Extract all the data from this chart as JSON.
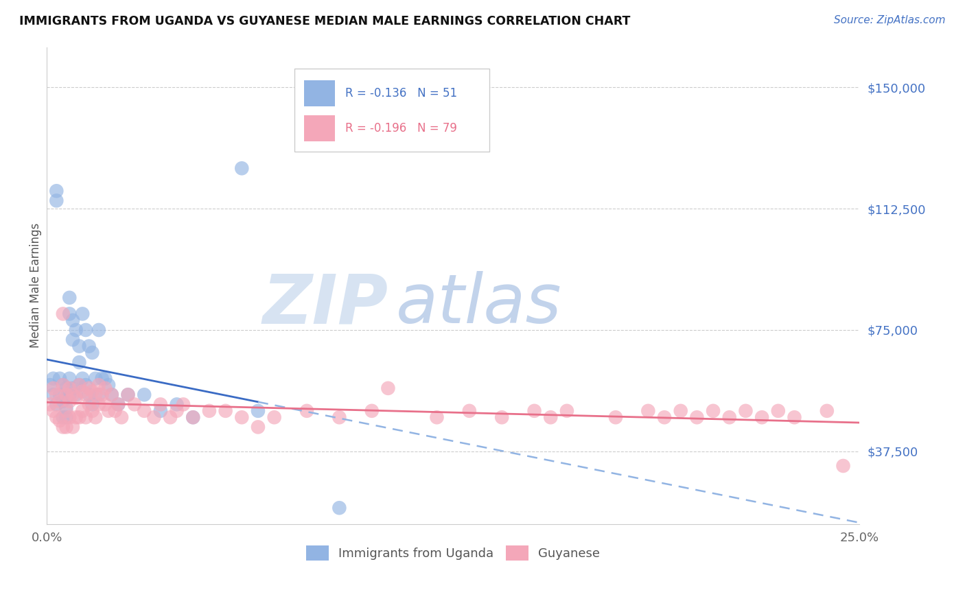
{
  "title": "IMMIGRANTS FROM UGANDA VS GUYANESE MEDIAN MALE EARNINGS CORRELATION CHART",
  "source": "Source: ZipAtlas.com",
  "ylabel": "Median Male Earnings",
  "xlim": [
    0.0,
    0.25
  ],
  "ylim": [
    15000,
    162500
  ],
  "blue_color": "#92b4e3",
  "pink_color": "#f4a7b9",
  "blue_line_color": "#3a6bc4",
  "pink_line_color": "#e8708a",
  "blue_dashed_color": "#92b4e3",
  "watermark_zip": "ZIP",
  "watermark_atlas": "atlas",
  "uganda_x": [
    0.001,
    0.002,
    0.002,
    0.003,
    0.003,
    0.003,
    0.004,
    0.004,
    0.005,
    0.005,
    0.005,
    0.006,
    0.006,
    0.006,
    0.006,
    0.007,
    0.007,
    0.007,
    0.007,
    0.008,
    0.008,
    0.008,
    0.009,
    0.009,
    0.01,
    0.01,
    0.01,
    0.011,
    0.011,
    0.012,
    0.012,
    0.013,
    0.013,
    0.014,
    0.014,
    0.015,
    0.016,
    0.016,
    0.017,
    0.018,
    0.019,
    0.02,
    0.022,
    0.025,
    0.03,
    0.035,
    0.04,
    0.045,
    0.06,
    0.065,
    0.09
  ],
  "uganda_y": [
    58000,
    60000,
    55000,
    118000,
    115000,
    52000,
    60000,
    55000,
    58000,
    53000,
    48000,
    57000,
    54000,
    51000,
    48000,
    85000,
    80000,
    60000,
    55000,
    78000,
    72000,
    57000,
    75000,
    55000,
    70000,
    65000,
    58000,
    80000,
    60000,
    75000,
    58000,
    70000,
    55000,
    68000,
    52000,
    60000,
    75000,
    55000,
    60000,
    60000,
    58000,
    55000,
    52000,
    55000,
    55000,
    50000,
    52000,
    48000,
    125000,
    50000,
    20000
  ],
  "guyanese_x": [
    0.001,
    0.002,
    0.002,
    0.003,
    0.003,
    0.004,
    0.004,
    0.005,
    0.005,
    0.005,
    0.006,
    0.006,
    0.006,
    0.007,
    0.007,
    0.007,
    0.008,
    0.008,
    0.009,
    0.009,
    0.01,
    0.01,
    0.011,
    0.011,
    0.012,
    0.012,
    0.013,
    0.013,
    0.014,
    0.014,
    0.015,
    0.015,
    0.016,
    0.016,
    0.017,
    0.018,
    0.018,
    0.019,
    0.02,
    0.021,
    0.022,
    0.023,
    0.025,
    0.027,
    0.03,
    0.033,
    0.035,
    0.038,
    0.04,
    0.042,
    0.045,
    0.05,
    0.055,
    0.06,
    0.065,
    0.07,
    0.08,
    0.09,
    0.1,
    0.105,
    0.12,
    0.13,
    0.14,
    0.15,
    0.155,
    0.16,
    0.175,
    0.185,
    0.19,
    0.195,
    0.2,
    0.205,
    0.21,
    0.215,
    0.22,
    0.225,
    0.23,
    0.24,
    0.245
  ],
  "guyanese_y": [
    52000,
    57000,
    50000,
    55000,
    48000,
    53000,
    47000,
    80000,
    58000,
    45000,
    55000,
    50000,
    45000,
    57000,
    53000,
    48000,
    55000,
    45000,
    54000,
    48000,
    58000,
    48000,
    56000,
    50000,
    55000,
    48000,
    57000,
    52000,
    56000,
    50000,
    55000,
    48000,
    58000,
    52000,
    55000,
    57000,
    52000,
    50000,
    55000,
    50000,
    52000,
    48000,
    55000,
    52000,
    50000,
    48000,
    52000,
    48000,
    50000,
    52000,
    48000,
    50000,
    50000,
    48000,
    45000,
    48000,
    50000,
    48000,
    50000,
    57000,
    48000,
    50000,
    48000,
    50000,
    48000,
    50000,
    48000,
    50000,
    48000,
    50000,
    48000,
    50000,
    48000,
    50000,
    48000,
    50000,
    48000,
    50000,
    33000
  ]
}
